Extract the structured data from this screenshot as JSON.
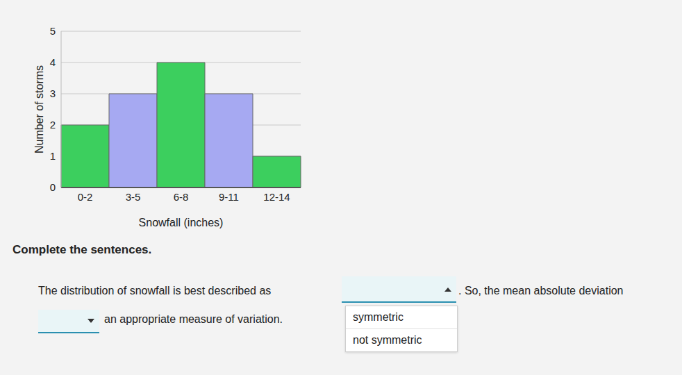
{
  "chart_data": {
    "type": "bar",
    "categories": [
      "0-2",
      "3-5",
      "6-8",
      "9-11",
      "12-14"
    ],
    "values": [
      2,
      3,
      4,
      3,
      1
    ],
    "colors": [
      "#3ccf5e",
      "#a6a9f2",
      "#3ccf5e",
      "#a6a9f2",
      "#3ccf5e"
    ],
    "xlabel": "Snowfall (inches)",
    "ylabel": "Number of storms",
    "ylim": [
      0,
      5
    ],
    "yticks": [
      0,
      1,
      2,
      3,
      4,
      5
    ],
    "grid": true
  },
  "prompt": "Complete the sentences.",
  "sentence": {
    "before": "The distribution of snowfall is best described as",
    "middle": ". So, the mean absolute deviation",
    "after": "an appropriate measure of variation."
  },
  "options": [
    "symmetric",
    "not symmetric"
  ]
}
